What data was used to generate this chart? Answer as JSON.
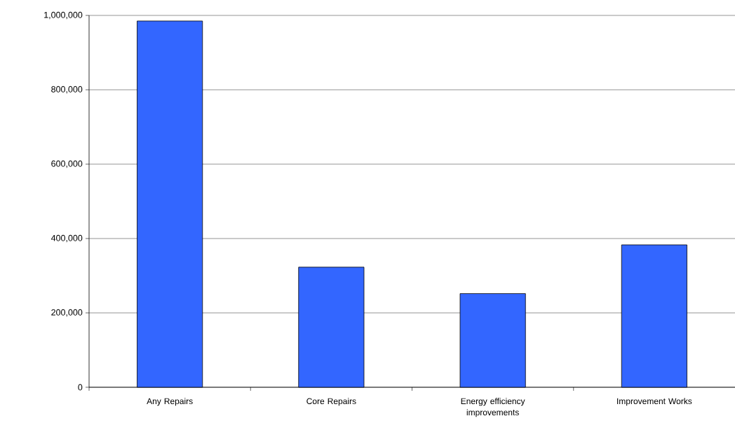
{
  "chart_data": {
    "type": "bar",
    "categories": [
      "Any Repairs",
      "Core Repairs",
      "Energy efficiency improvements",
      "Improvement Works"
    ],
    "values": [
      985000,
      323000,
      252000,
      383000
    ],
    "color": "#3366ff",
    "ylim": [
      0,
      1000000
    ],
    "yticks": [
      {
        "value": 0,
        "label": "0"
      },
      {
        "value": 200000,
        "label": "200,000"
      },
      {
        "value": 400000,
        "label": "400,000"
      },
      {
        "value": 600000,
        "label": "600,000"
      },
      {
        "value": 800000,
        "label": "800,000"
      },
      {
        "value": 1000000,
        "label": "1,000,000"
      }
    ],
    "grid": "y"
  }
}
